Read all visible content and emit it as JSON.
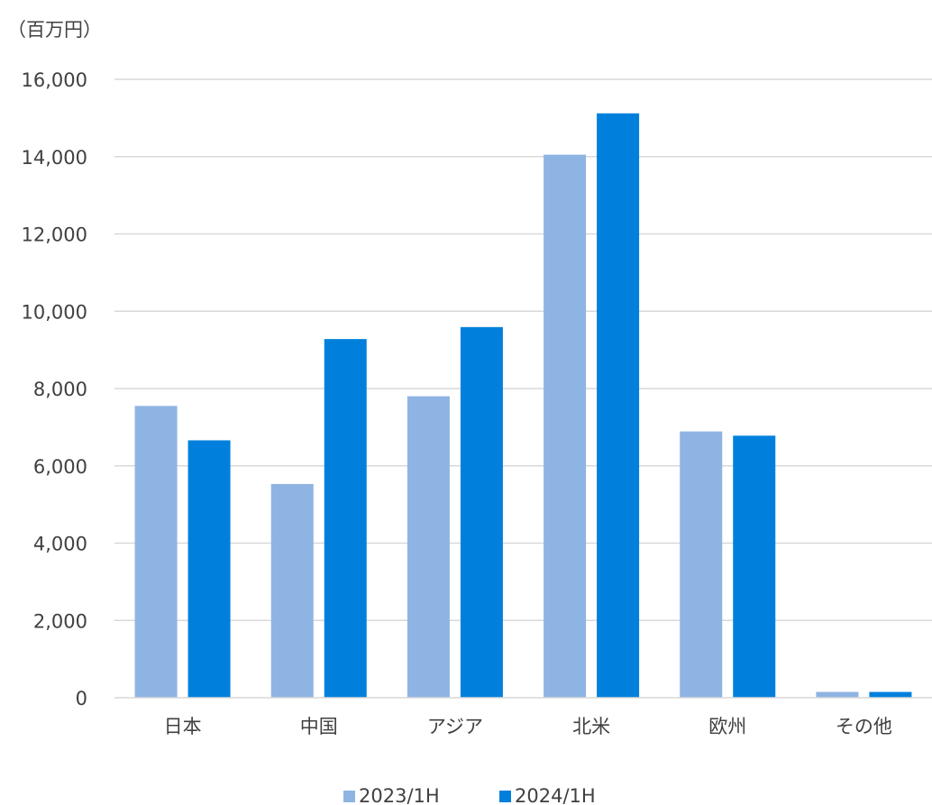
{
  "chart_data": {
    "type": "bar",
    "unit_label": "（百万円）",
    "categories": [
      "日本",
      "中国",
      "アジア",
      "北米",
      "欧州",
      "その他"
    ],
    "series": [
      {
        "name": "2023/1H",
        "color": "#8EB4E3",
        "values": [
          7550,
          5530,
          7800,
          14050,
          6890,
          150
        ]
      },
      {
        "name": "2024/1H",
        "color": "#0080DC",
        "values": [
          6660,
          9280,
          9590,
          15120,
          6780,
          150
        ]
      }
    ],
    "ylim": [
      0,
      16000
    ],
    "yticks": [
      0,
      2000,
      4000,
      6000,
      8000,
      10000,
      12000,
      14000,
      16000
    ],
    "ytick_labels": [
      "0",
      "2,000",
      "4,000",
      "6,000",
      "8,000",
      "10,000",
      "12,000",
      "14,000",
      "16,000"
    ],
    "grid": true,
    "legend_position": "bottom"
  }
}
